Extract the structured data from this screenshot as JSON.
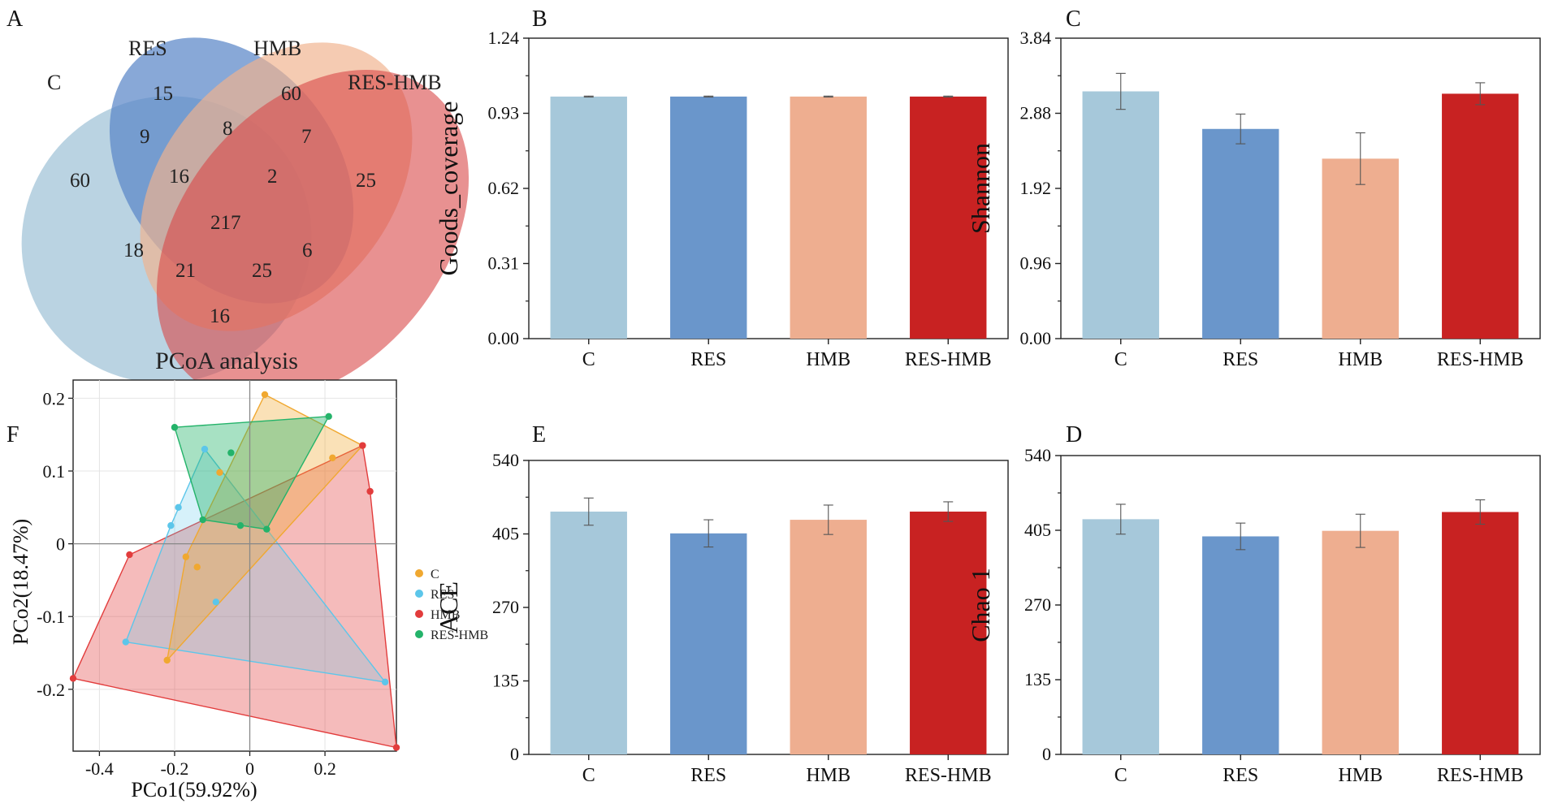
{
  "panels": {
    "A": "A",
    "B": "B",
    "C": "C",
    "D": "D",
    "E": "E",
    "F": "F"
  },
  "venn": {
    "sets": [
      {
        "name": "C",
        "color": "#8fb8d0"
      },
      {
        "name": "RES",
        "color": "#5a86c8"
      },
      {
        "name": "HMB",
        "color": "#f0b28e"
      },
      {
        "name": "RES-HMB",
        "color": "#d94848"
      }
    ],
    "counts": {
      "C_only": "60",
      "RES_only": "15",
      "HMB_only": "60",
      "RESHMB_only": "25",
      "C_RES": "9",
      "RES_HMB": "8",
      "HMB_RESHMB": "7",
      "C_RES_HMB": "16",
      "RES_HMB_RESHMB": "2",
      "all": "217",
      "C_HMB": "18",
      "C_HMB_RESHMB": "21",
      "C_RES_RESHMB": "25",
      "RES_RESHMB": "6",
      "C_RESHMB": "16"
    }
  },
  "chart_data": [
    {
      "id": "B",
      "type": "bar",
      "categories": [
        "C",
        "RES",
        "HMB",
        "RES-HMB"
      ],
      "values": [
        0.999,
        0.999,
        0.999,
        0.999
      ],
      "errors": [
        0.002,
        0.002,
        0.002,
        0.002
      ],
      "ylabel": "Goods_coverage",
      "ylim": [
        0,
        1.24
      ],
      "yticks": [
        "0.00",
        "0.31",
        "0.62",
        "0.93",
        "1.24"
      ],
      "colors": [
        "#a6c8da",
        "#6a96cb",
        "#eeae90",
        "#c82222"
      ]
    },
    {
      "id": "C",
      "type": "bar",
      "categories": [
        "C",
        "RES",
        "HMB",
        "RES-HMB"
      ],
      "values": [
        3.16,
        2.68,
        2.3,
        3.13
      ],
      "errors": [
        0.23,
        0.19,
        0.33,
        0.14
      ],
      "ylabel": "Shannon",
      "ylim": [
        0,
        3.84
      ],
      "yticks": [
        "0.00",
        "0.96",
        "1.92",
        "2.88",
        "3.84"
      ],
      "colors": [
        "#a6c8da",
        "#6a96cb",
        "#eeae90",
        "#c82222"
      ]
    },
    {
      "id": "E",
      "type": "bar",
      "categories": [
        "C",
        "RES",
        "HMB",
        "RES-HMB"
      ],
      "values": [
        446,
        406,
        431,
        446
      ],
      "errors": [
        25,
        25,
        27,
        18
      ],
      "ylabel": "ACE",
      "ylim": [
        0,
        540
      ],
      "yticks": [
        "0",
        "135",
        "270",
        "405",
        "540"
      ],
      "colors": [
        "#a6c8da",
        "#6a96cb",
        "#eeae90",
        "#c82222"
      ]
    },
    {
      "id": "D",
      "type": "bar",
      "categories": [
        "C",
        "RES",
        "HMB",
        "RES-HMB"
      ],
      "values": [
        425,
        394,
        404,
        438
      ],
      "errors": [
        27,
        24,
        30,
        22
      ],
      "ylabel": "Chao 1",
      "ylim": [
        0,
        540
      ],
      "yticks": [
        "0",
        "135",
        "270",
        "405",
        "540"
      ],
      "colors": [
        "#a6c8da",
        "#6a96cb",
        "#eeae90",
        "#c82222"
      ]
    },
    {
      "id": "F",
      "type": "scatter",
      "title": "PCoA analysis",
      "xlabel": "PCo1(59.92%)",
      "ylabel": "PCo2(18.47%)",
      "xlim": [
        -0.47,
        0.39
      ],
      "ylim": [
        -0.285,
        0.225
      ],
      "xticks": [
        "-0.4",
        "-0.2",
        "0",
        "0.2"
      ],
      "xtick_values": [
        -0.4,
        -0.2,
        0,
        0.2
      ],
      "yticks": [
        "0.2",
        "0.1",
        "0",
        "-0.1",
        "-0.2"
      ],
      "ytick_values": [
        0.2,
        0.1,
        0,
        -0.1,
        -0.2
      ],
      "series": [
        {
          "name": "C",
          "color": "#f0a830",
          "points": [
            [
              0.04,
              0.205
            ],
            [
              0.3,
              0.135
            ],
            [
              0.22,
              0.118
            ],
            [
              -0.08,
              0.098
            ],
            [
              -0.17,
              -0.018
            ],
            [
              -0.14,
              -0.032
            ],
            [
              -0.22,
              -0.16
            ]
          ],
          "hull": [
            [
              0.04,
              0.205
            ],
            [
              0.3,
              0.135
            ],
            [
              -0.22,
              -0.16
            ],
            [
              -0.17,
              -0.018
            ]
          ]
        },
        {
          "name": "RES",
          "color": "#5cc6ea",
          "points": [
            [
              -0.12,
              0.13
            ],
            [
              -0.19,
              0.05
            ],
            [
              -0.21,
              0.025
            ],
            [
              -0.09,
              -0.08
            ],
            [
              -0.33,
              -0.135
            ],
            [
              0.36,
              -0.19
            ]
          ],
          "hull": [
            [
              -0.12,
              0.13
            ],
            [
              0.36,
              -0.19
            ],
            [
              -0.33,
              -0.135
            ],
            [
              -0.21,
              0.025
            ]
          ]
        },
        {
          "name": "HMB",
          "color": "#e23c3c",
          "points": [
            [
              -0.47,
              -0.185
            ],
            [
              -0.32,
              -0.015
            ],
            [
              0.3,
              0.135
            ],
            [
              0.32,
              0.072
            ],
            [
              0.39,
              -0.28
            ]
          ],
          "hull": [
            [
              -0.32,
              -0.015
            ],
            [
              0.3,
              0.135
            ],
            [
              0.32,
              0.072
            ],
            [
              0.39,
              -0.28
            ],
            [
              -0.47,
              -0.185
            ]
          ]
        },
        {
          "name": "RES-HMB",
          "color": "#24b36a",
          "points": [
            [
              -0.2,
              0.16
            ],
            [
              0.21,
              0.175
            ],
            [
              -0.05,
              0.125
            ],
            [
              -0.125,
              0.033
            ],
            [
              -0.025,
              0.025
            ],
            [
              0.045,
              0.02
            ]
          ],
          "hull": [
            [
              -0.2,
              0.16
            ],
            [
              0.21,
              0.175
            ],
            [
              0.045,
              0.02
            ],
            [
              -0.125,
              0.033
            ]
          ]
        }
      ]
    }
  ]
}
